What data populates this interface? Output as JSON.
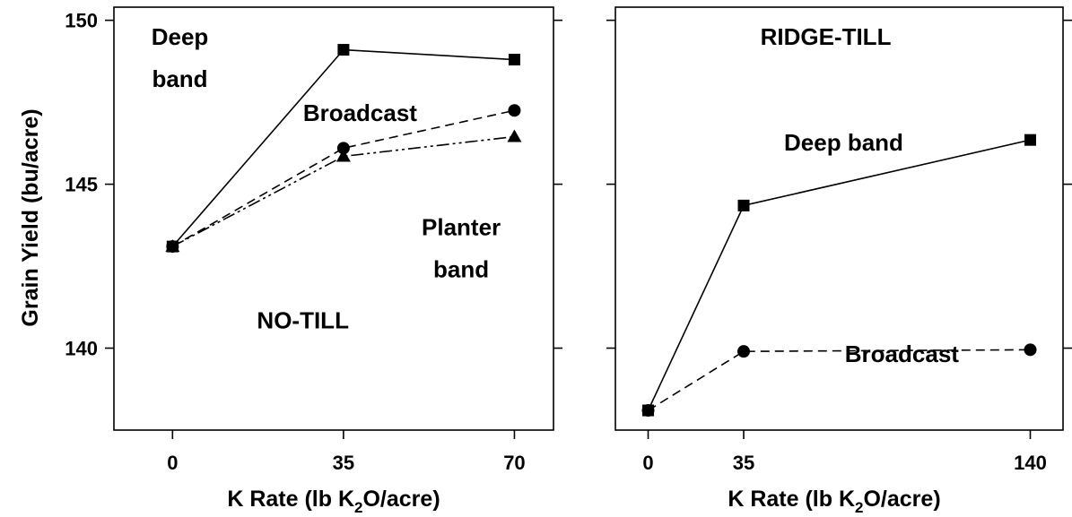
{
  "chart_data": [
    {
      "type": "line",
      "panel_label": "NO-TILL",
      "ylabel": "Grain Yield (bu/acre)",
      "xlabel_main": "K Rate (lb K",
      "xlabel_sub": "2",
      "xlabel_end": "O/acre)",
      "x": [
        0,
        35,
        70
      ],
      "x_tick_labels": [
        "0",
        "35",
        "70"
      ],
      "xlim": [
        -12,
        78
      ],
      "ylim": [
        137.5,
        150.4
      ],
      "y_ticks": [
        140,
        145,
        150
      ],
      "y_tick_labels": [
        "140",
        "145",
        "150"
      ],
      "series": [
        {
          "name": "Deep band",
          "marker": "square",
          "dash": "solid",
          "values": [
            143.1,
            149.1,
            148.8
          ]
        },
        {
          "name": "Broadcast",
          "marker": "circle",
          "dash": "dashed",
          "values": [
            143.1,
            146.1,
            147.25
          ]
        },
        {
          "name": "Planter band",
          "marker": "triangle",
          "dash": "dashdotdot",
          "values": [
            143.1,
            145.85,
            146.45
          ]
        }
      ],
      "annotations": [
        {
          "text": "Deep",
          "ax": 0.15,
          "ay": 0.93
        },
        {
          "text": "band",
          "ax": 0.15,
          "ay": 0.83
        },
        {
          "text": "Broadcast",
          "ax": 0.56,
          "ay": 0.75
        },
        {
          "text": "Planter",
          "ax": 0.79,
          "ay": 0.48
        },
        {
          "text": "band",
          "ax": 0.79,
          "ay": 0.38
        },
        {
          "text": "NO-TILL",
          "ax": 0.43,
          "ay": 0.26
        }
      ]
    },
    {
      "type": "line",
      "panel_label": "RIDGE-TILL",
      "xlabel_main": "K Rate (lb K",
      "xlabel_sub": "2",
      "xlabel_end": "O/acre)",
      "x": [
        0,
        35,
        140
      ],
      "x_tick_labels": [
        "0",
        "35",
        "140"
      ],
      "xlim": [
        -12,
        152
      ],
      "ylim": [
        137.5,
        150.4
      ],
      "y_ticks": [
        140,
        145,
        150
      ],
      "series": [
        {
          "name": "Deep band",
          "marker": "square",
          "dash": "solid",
          "values": [
            138.1,
            144.35,
            146.35
          ]
        },
        {
          "name": "Broadcast",
          "marker": "circle",
          "dash": "dashed",
          "values": [
            138.1,
            139.9,
            139.95
          ]
        }
      ],
      "annotations": [
        {
          "text": "RIDGE-TILL",
          "ax": 0.47,
          "ay": 0.93
        },
        {
          "text": "Deep band",
          "ax": 0.51,
          "ay": 0.68
        },
        {
          "text": "Broadcast",
          "ax": 0.64,
          "ay": 0.18
        }
      ]
    }
  ]
}
